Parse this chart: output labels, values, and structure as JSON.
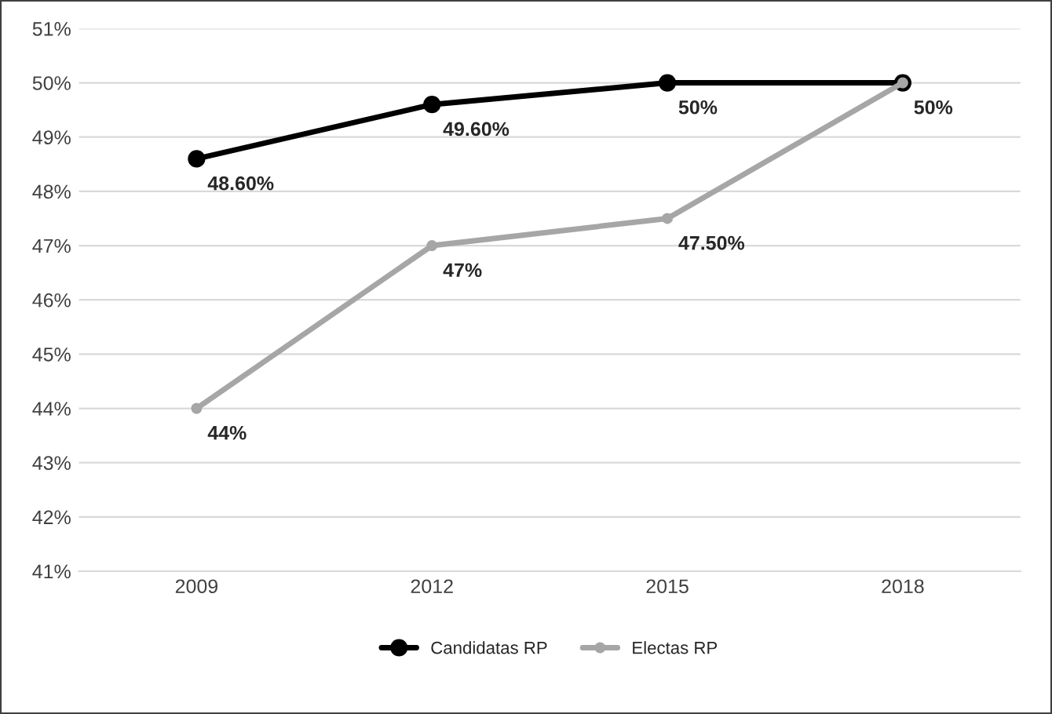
{
  "chart_data": {
    "type": "line",
    "categories": [
      "2009",
      "2012",
      "2015",
      "2018"
    ],
    "series": [
      {
        "name": "Candidatas RP",
        "color": "#000000",
        "values": [
          48.6,
          49.6,
          50,
          50
        ],
        "value_labels": [
          "48.60%",
          "49.60%",
          "50%",
          null
        ]
      },
      {
        "name": "Electas RP",
        "color": "#a6a6a6",
        "values": [
          44,
          47,
          47.5,
          50
        ],
        "value_labels": [
          "44%",
          "47%",
          "47.50%",
          "50%"
        ]
      }
    ],
    "ylim": [
      41,
      51
    ],
    "yticks": [
      {
        "value": 41,
        "label": "41%"
      },
      {
        "value": 42,
        "label": "42%"
      },
      {
        "value": 43,
        "label": "43%"
      },
      {
        "value": 44,
        "label": "44%"
      },
      {
        "value": 45,
        "label": "45%"
      },
      {
        "value": 46,
        "label": "46%"
      },
      {
        "value": 47,
        "label": "47%"
      },
      {
        "value": 48,
        "label": "48%"
      },
      {
        "value": 49,
        "label": "49%"
      },
      {
        "value": 50,
        "label": "50%"
      },
      {
        "value": 51,
        "label": "51%"
      }
    ],
    "grid": "y",
    "legend": "bottom",
    "marker": "circle",
    "line_style": "solid"
  }
}
